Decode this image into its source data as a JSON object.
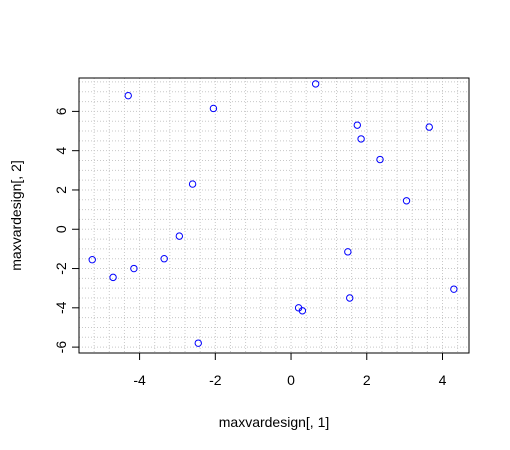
{
  "chart_data": {
    "type": "scatter",
    "title": "",
    "xlabel": "maxvardesign[, 1]",
    "ylabel": "maxvardesign[, 2]",
    "xlim": [
      -5.6,
      4.7
    ],
    "ylim": [
      -6.3,
      7.7
    ],
    "x_ticks": [
      -4,
      -2,
      0,
      2,
      4
    ],
    "x_tick_labels": [
      "-4",
      "-2",
      "0",
      "2",
      "4"
    ],
    "y_ticks": [
      -6,
      -4,
      -2,
      0,
      2,
      4,
      6
    ],
    "y_tick_labels": [
      "-6",
      "-4",
      "-2",
      "0",
      "2",
      "4",
      "6"
    ],
    "grid": true,
    "grid_style": "dotted",
    "grid_step": [
      0.4,
      0.5
    ],
    "marker": "open-circle",
    "marker_color": "#0000ff",
    "points": [
      {
        "x": -5.25,
        "y": -1.55
      },
      {
        "x": -4.7,
        "y": -2.45
      },
      {
        "x": -4.3,
        "y": 6.8
      },
      {
        "x": -4.15,
        "y": -2.0
      },
      {
        "x": -3.35,
        "y": -1.5
      },
      {
        "x": -2.95,
        "y": -0.35
      },
      {
        "x": -2.6,
        "y": 2.3
      },
      {
        "x": -2.45,
        "y": -5.8
      },
      {
        "x": -2.05,
        "y": 6.15
      },
      {
        "x": 0.2,
        "y": -4.0
      },
      {
        "x": 0.3,
        "y": -4.15
      },
      {
        "x": 0.65,
        "y": 7.4
      },
      {
        "x": 1.5,
        "y": -1.15
      },
      {
        "x": 1.55,
        "y": -3.5
      },
      {
        "x": 1.75,
        "y": 5.3
      },
      {
        "x": 1.85,
        "y": 4.6
      },
      {
        "x": 2.35,
        "y": 3.55
      },
      {
        "x": 3.05,
        "y": 1.45
      },
      {
        "x": 3.65,
        "y": 5.2
      },
      {
        "x": 4.3,
        "y": -3.05
      }
    ]
  }
}
